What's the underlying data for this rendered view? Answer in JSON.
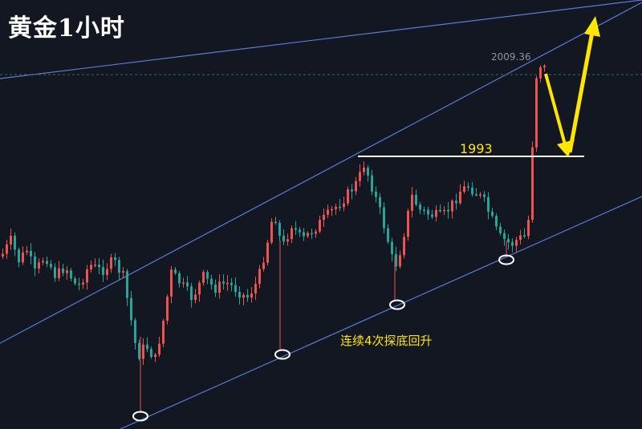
{
  "title": "黄金1小时",
  "price_label": "2009.36",
  "level_label": "1993",
  "annotation": "连续4次探底回升",
  "colors": {
    "background": "#131722",
    "up": "#ef5350",
    "down": "#26a69a",
    "channel": "#5b7bd6",
    "level": "#ffffff",
    "highlight": "#ffe600",
    "marker": "#ffffff",
    "dashed": "#2f6f6a"
  },
  "chart_data": {
    "type": "candlestick",
    "title": "黄金1小时",
    "level_line": 1993,
    "last_price": 2009.36,
    "channel": "ascending parallel channel (3 lines)",
    "support_touches": 4,
    "projection": "pullback to 1993 then rally",
    "grid": false
  }
}
